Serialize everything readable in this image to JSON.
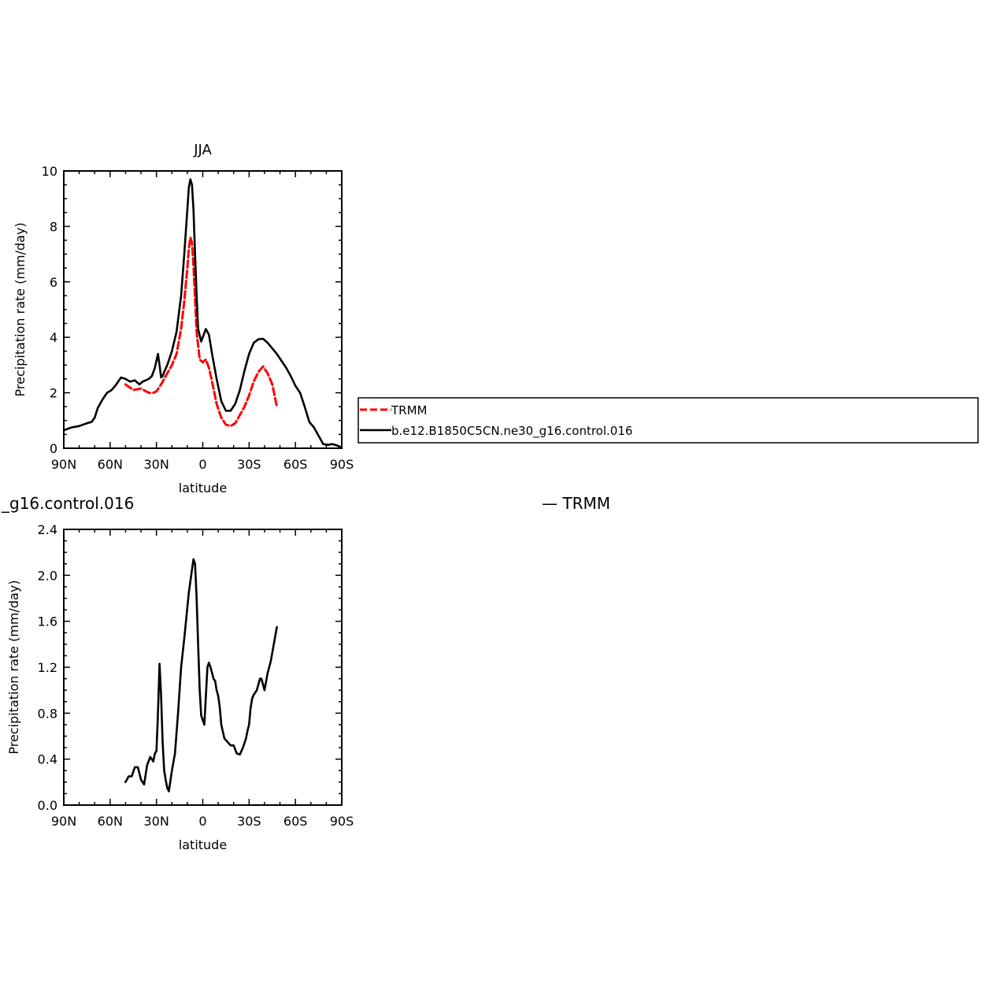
{
  "chart_data": [
    {
      "type": "line",
      "title": "JJA",
      "xlabel": "latitude",
      "ylabel": "Precipitation rate (mm/day)",
      "xlim": [
        90,
        -90
      ],
      "ylim": [
        0,
        10
      ],
      "x_ticks": [
        90,
        60,
        30,
        0,
        -30,
        -60,
        -90
      ],
      "x_tick_labels": [
        "90N",
        "60N",
        "30N",
        "0",
        "30S",
        "60S",
        "90S"
      ],
      "y_ticks": [
        0,
        2,
        4,
        6,
        8,
        10
      ],
      "y_tick_labels": [
        "0",
        "2",
        "4",
        "6",
        "8",
        "10"
      ],
      "grid": false,
      "legend_position": "right, outside plot",
      "series": [
        {
          "name": "TRMM",
          "color": "#ff0000",
          "style": "dashed",
          "x": [
            50,
            45,
            40,
            35,
            32,
            30,
            27,
            24,
            20,
            17,
            14,
            12,
            10,
            9,
            8,
            7,
            6,
            5,
            4,
            2,
            0,
            -2,
            -4,
            -6,
            -9,
            -12,
            -15,
            -18,
            -21,
            -24,
            -27,
            -30,
            -33,
            -36,
            -39,
            -42,
            -45,
            -48
          ],
          "values": [
            2.3,
            2.1,
            2.15,
            2.0,
            2.0,
            2.05,
            2.3,
            2.6,
            3.0,
            3.4,
            4.3,
            5.3,
            6.5,
            7.2,
            7.6,
            7.4,
            6.6,
            5.4,
            4.2,
            3.2,
            3.1,
            3.2,
            2.9,
            2.4,
            1.6,
            1.1,
            0.85,
            0.8,
            0.9,
            1.2,
            1.5,
            1.9,
            2.4,
            2.75,
            2.95,
            2.7,
            2.3,
            1.5
          ]
        },
        {
          "name": "b.e12.B1850C5CN.ne30_g16.control.016",
          "color": "#000000",
          "style": "solid",
          "x": [
            90,
            85,
            80,
            75,
            72,
            70,
            68,
            65,
            62,
            59,
            56,
            53,
            50,
            47,
            44,
            41,
            39,
            37,
            35,
            33,
            31,
            29,
            28,
            27,
            26,
            25,
            23,
            20,
            17,
            14,
            12,
            10,
            9,
            8,
            7,
            6,
            5,
            4,
            3,
            1,
            0,
            -2,
            -4,
            -6,
            -9,
            -12,
            -15,
            -18,
            -21,
            -24,
            -27,
            -30,
            -33,
            -36,
            -39,
            -42,
            -45,
            -48,
            -51,
            -54,
            -57,
            -60,
            -63,
            -66,
            -69,
            -72,
            -75,
            -78,
            -81,
            -84,
            -87,
            -89
          ],
          "values": [
            0.65,
            0.75,
            0.8,
            0.9,
            0.95,
            1.1,
            1.45,
            1.75,
            2.0,
            2.1,
            2.3,
            2.55,
            2.5,
            2.4,
            2.45,
            2.3,
            2.4,
            2.45,
            2.5,
            2.6,
            2.9,
            3.4,
            3.0,
            2.55,
            2.6,
            2.75,
            3.0,
            3.5,
            4.2,
            5.5,
            7.0,
            8.6,
            9.4,
            9.7,
            9.5,
            8.6,
            7.0,
            5.5,
            4.3,
            3.85,
            4.0,
            4.3,
            4.1,
            3.4,
            2.5,
            1.7,
            1.35,
            1.35,
            1.6,
            2.1,
            2.8,
            3.4,
            3.8,
            3.93,
            3.95,
            3.8,
            3.6,
            3.4,
            3.15,
            2.9,
            2.6,
            2.25,
            2.0,
            1.5,
            0.95,
            0.75,
            0.45,
            0.15,
            0.12,
            0.15,
            0.1,
            0.05
          ]
        }
      ],
      "legend": [
        {
          "label": "TRMM",
          "color": "#ff0000",
          "style": "dashed"
        },
        {
          "label": "b.e12.B1850C5CN.ne30_g16.control.016",
          "color": "#000000",
          "style": "solid"
        }
      ]
    },
    {
      "type": "line",
      "title": "_g16.control.016",
      "title_right": "— TRMM",
      "xlabel": "latitude",
      "ylabel": "Precipitation rate (mm/day)",
      "xlim": [
        90,
        -90
      ],
      "ylim": [
        0,
        2.4
      ],
      "x_ticks": [
        90,
        60,
        30,
        0,
        -30,
        -60,
        -90
      ],
      "x_tick_labels": [
        "90N",
        "60N",
        "30N",
        "0",
        "30S",
        "60S",
        "90S"
      ],
      "y_ticks": [
        0,
        0.4,
        0.8,
        1.2,
        1.6,
        2.0,
        2.4
      ],
      "y_tick_labels": [
        "0.0",
        "0.4",
        "0.8",
        "1.2",
        "1.6",
        "2.0",
        "2.4"
      ],
      "grid": false,
      "series": [
        {
          "color": "#000000",
          "style": "solid",
          "x": [
            50,
            48,
            46,
            44,
            42,
            40,
            38,
            36,
            34,
            32,
            31,
            30,
            29,
            28,
            27,
            26,
            25,
            24,
            23,
            22,
            20,
            18,
            16,
            14,
            12,
            10,
            9,
            8,
            7,
            6,
            5,
            4,
            3,
            2,
            1,
            -1,
            -3,
            -4,
            -5,
            -6,
            -7,
            -8,
            -9,
            -10,
            -11,
            -12,
            -14,
            -16,
            -18,
            -20,
            -22,
            -24,
            -26,
            -28,
            -29,
            -30,
            -31,
            -32,
            -33,
            -34,
            -35,
            -36,
            -37,
            -38,
            -39,
            -40,
            -42,
            -44,
            -46,
            -48
          ],
          "values": [
            0.2,
            0.25,
            0.25,
            0.33,
            0.33,
            0.22,
            0.18,
            0.35,
            0.42,
            0.38,
            0.45,
            0.47,
            0.8,
            1.23,
            0.95,
            0.55,
            0.3,
            0.22,
            0.15,
            0.12,
            0.3,
            0.45,
            0.8,
            1.2,
            1.45,
            1.72,
            1.85,
            1.95,
            2.05,
            2.14,
            2.1,
            1.8,
            1.4,
            1.0,
            0.78,
            0.7,
            1.2,
            1.24,
            1.2,
            1.15,
            1.1,
            1.08,
            1.0,
            0.95,
            0.85,
            0.7,
            0.58,
            0.55,
            0.52,
            0.52,
            0.45,
            0.44,
            0.5,
            0.58,
            0.65,
            0.7,
            0.85,
            0.93,
            0.96,
            0.98,
            1.0,
            1.05,
            1.1,
            1.1,
            1.05,
            1.0,
            1.15,
            1.25,
            1.4,
            1.55
          ]
        }
      ]
    }
  ]
}
